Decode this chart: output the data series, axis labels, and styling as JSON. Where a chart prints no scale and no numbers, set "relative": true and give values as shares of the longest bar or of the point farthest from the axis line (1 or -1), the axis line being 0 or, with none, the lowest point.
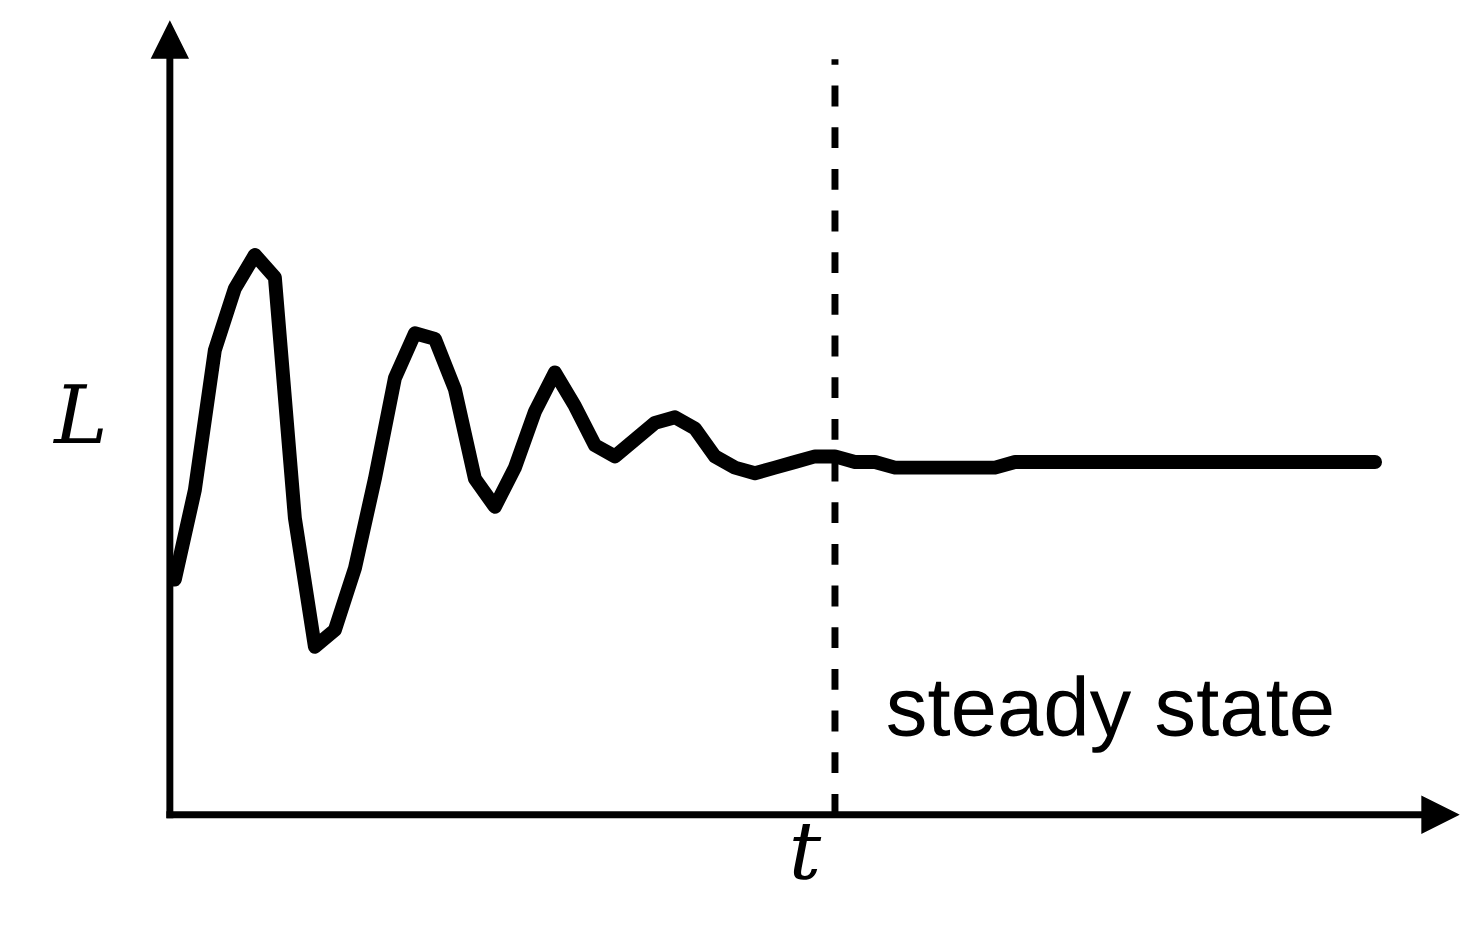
{
  "chart_data": {
    "type": "line",
    "xlabel": "t",
    "ylabel": "L",
    "relative": true,
    "tick_labels": false,
    "categories": [
      null,
      null,
      null,
      null,
      null,
      null,
      null,
      null,
      null,
      null,
      null,
      null,
      null,
      null,
      null,
      null,
      null,
      null,
      null,
      null,
      null,
      null,
      null,
      null,
      null,
      null,
      null,
      null,
      null,
      null,
      null,
      null,
      null,
      null,
      null,
      null,
      null,
      null,
      null,
      null,
      null,
      null,
      null,
      null,
      null,
      null,
      null,
      null,
      null,
      null,
      null,
      null,
      null,
      null,
      null,
      null,
      null,
      null,
      null,
      null,
      null
    ],
    "series": [
      {
        "color": "#000000",
        "values": [
          0.42,
          0.58,
          0.83,
          0.94,
          1.0,
          0.96,
          0.53,
          0.3,
          0.33,
          0.44,
          0.6,
          0.78,
          0.86,
          0.85,
          0.76,
          0.6,
          0.55,
          0.62,
          0.72,
          0.79,
          0.73,
          0.66,
          0.64,
          0.67,
          0.7,
          0.71,
          0.69,
          0.64,
          0.62,
          0.61,
          0.62,
          0.63,
          0.64,
          0.64,
          0.63,
          0.63,
          0.62,
          0.62,
          0.62,
          0.62,
          0.62,
          0.62,
          0.63,
          0.63,
          0.63,
          0.63,
          0.63,
          0.63,
          0.63,
          0.63,
          0.63,
          0.63,
          0.63,
          0.63,
          0.63,
          0.63,
          0.63,
          0.63,
          0.63,
          0.63,
          0.63
        ]
      }
    ],
    "annotations": [
      "steady state"
    ]
  }
}
